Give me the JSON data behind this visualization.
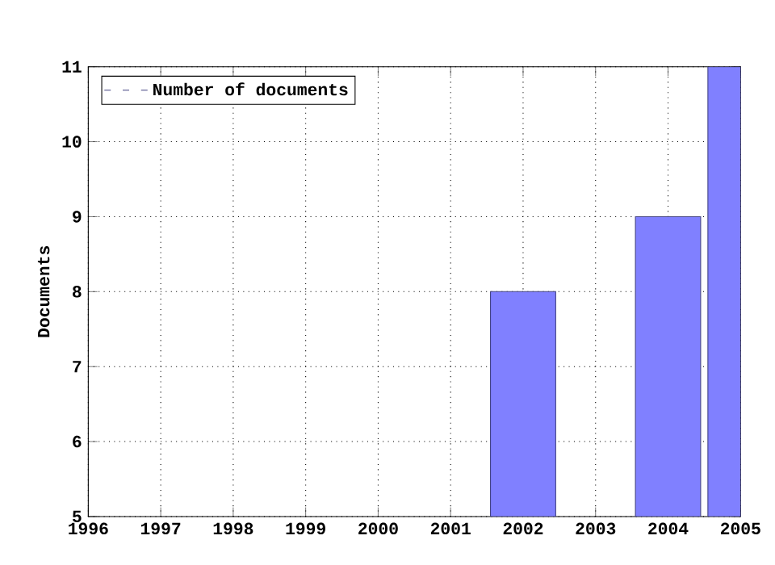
{
  "chart_data": {
    "type": "bar",
    "ylabel": "Documents",
    "x": [
      2002,
      2004,
      2005
    ],
    "series": [
      {
        "name": "Number of documents",
        "color": "#8080ff",
        "values": [
          8,
          9,
          11
        ]
      }
    ],
    "xlim": [
      1996,
      2005
    ],
    "xticks": [
      1996,
      1997,
      1998,
      1999,
      2000,
      2001,
      2002,
      2003,
      2004,
      2005
    ],
    "ylim": [
      5,
      11
    ],
    "yticks": [
      5,
      6,
      7,
      8,
      9,
      10,
      11
    ],
    "grid": true,
    "legend": "top left"
  }
}
